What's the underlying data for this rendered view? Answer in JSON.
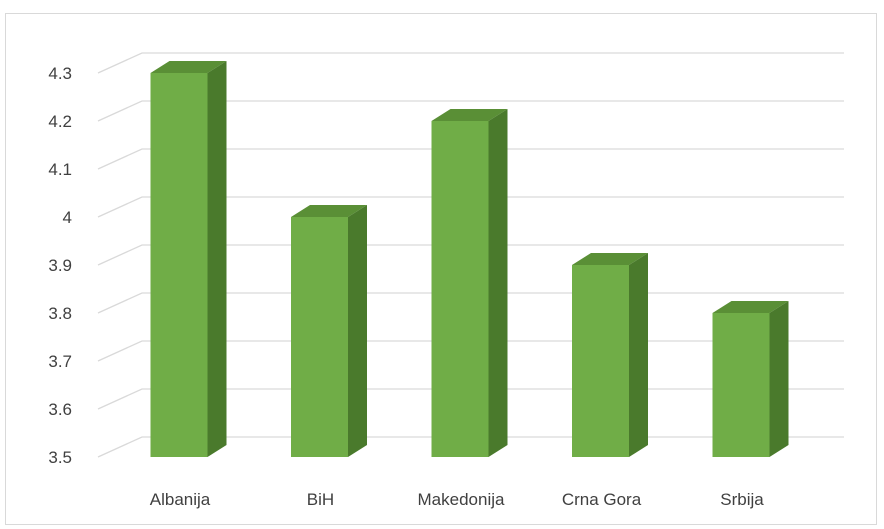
{
  "chart_data": {
    "type": "bar",
    "style": "3d-column",
    "title": "",
    "xlabel": "",
    "ylabel": "",
    "categories": [
      "Albanija",
      "BiH",
      "Makedonija",
      "Crna Gora",
      "Srbija"
    ],
    "values": [
      4.3,
      4.0,
      4.2,
      3.9,
      3.8
    ],
    "ylim": [
      3.5,
      4.3
    ],
    "yticks": [
      "3.5",
      "3.6",
      "3.7",
      "3.8",
      "3.9",
      "4",
      "4.1",
      "4.2",
      "4.3"
    ],
    "grid": true,
    "legend": "none",
    "colors": {
      "bar_front": "#70ad47",
      "bar_side": "#4a7a2c",
      "bar_top": "#5a8f36",
      "gridline": "#d9d9d9",
      "text": "#404040"
    }
  }
}
